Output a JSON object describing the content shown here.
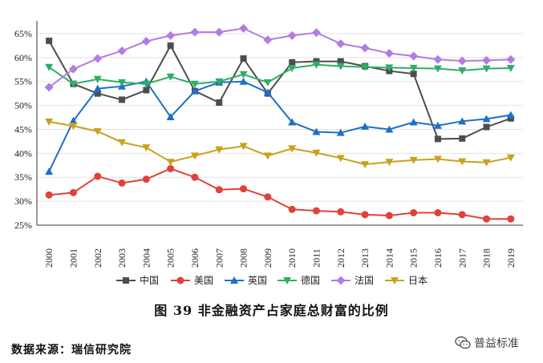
{
  "chart_data": {
    "type": "line",
    "x": [
      "2000",
      "2001",
      "2002",
      "2003",
      "2004",
      "2005",
      "2006",
      "2007",
      "2008",
      "2009",
      "2010",
      "2011",
      "2012",
      "2013",
      "2014",
      "2015",
      "2016",
      "2017",
      "2018",
      "2019"
    ],
    "y_ticks": [
      "25%",
      "30%",
      "35%",
      "40%",
      "45%",
      "50%",
      "55%",
      "60%",
      "65%"
    ],
    "ylim": [
      25,
      67
    ],
    "series": [
      {
        "name": "中国",
        "color": "#4d4d4d",
        "marker": "square",
        "values": [
          63.5,
          54.5,
          52.5,
          51.2,
          53.2,
          62.5,
          53,
          50.6,
          59.8,
          52.5,
          59,
          59.2,
          59.2,
          58.2,
          57.2,
          56.6,
          43,
          43.1,
          45.5,
          47.3
        ]
      },
      {
        "name": "美国",
        "color": "#e0413a",
        "marker": "circle",
        "values": [
          31.3,
          31.8,
          35.2,
          33.8,
          34.6,
          36.8,
          35,
          32.4,
          32.6,
          30.9,
          28.3,
          28,
          27.8,
          27.2,
          27,
          27.6,
          27.6,
          27.2,
          26.3,
          26.3
        ]
      },
      {
        "name": "英国",
        "color": "#1e6fc8",
        "marker": "triangle-up",
        "values": [
          36.2,
          46.8,
          53.5,
          54,
          55,
          47.6,
          53,
          54.8,
          55,
          52.7,
          46.5,
          44.5,
          44.3,
          45.6,
          45,
          46.5,
          45.8,
          46.7,
          47.2,
          48
        ]
      },
      {
        "name": "德国",
        "color": "#2eaf63",
        "marker": "triangle-down",
        "values": [
          58,
          54.5,
          55.5,
          54.8,
          54.5,
          56,
          54.5,
          55,
          56.5,
          54.8,
          57.8,
          58.5,
          58.2,
          58,
          57.9,
          57.8,
          57.7,
          57.3,
          57.7,
          57.8
        ]
      },
      {
        "name": "法国",
        "color": "#b27ce0",
        "marker": "diamond",
        "values": [
          53.8,
          57.6,
          59.8,
          61.4,
          63.4,
          64.6,
          65.3,
          65.3,
          66.1,
          63.7,
          64.6,
          65.2,
          62.9,
          62,
          60.9,
          60.3,
          59.6,
          59.3,
          59.4,
          59.6
        ]
      },
      {
        "name": "日本",
        "color": "#c9a21b",
        "marker": "triangle-down",
        "values": [
          46.6,
          45.7,
          44.6,
          42.3,
          41.2,
          38.2,
          39.5,
          40.8,
          41.5,
          39.5,
          41,
          40.1,
          39,
          37.7,
          38.2,
          38.6,
          38.8,
          38.3,
          38.1,
          39.1
        ]
      }
    ]
  },
  "caption": "图 39    非金融资产占家庭总财富的比例",
  "source": "数据来源：瑞信研究院",
  "watermark": {
    "label": "普益标准",
    "icon": "wechat-icon"
  }
}
